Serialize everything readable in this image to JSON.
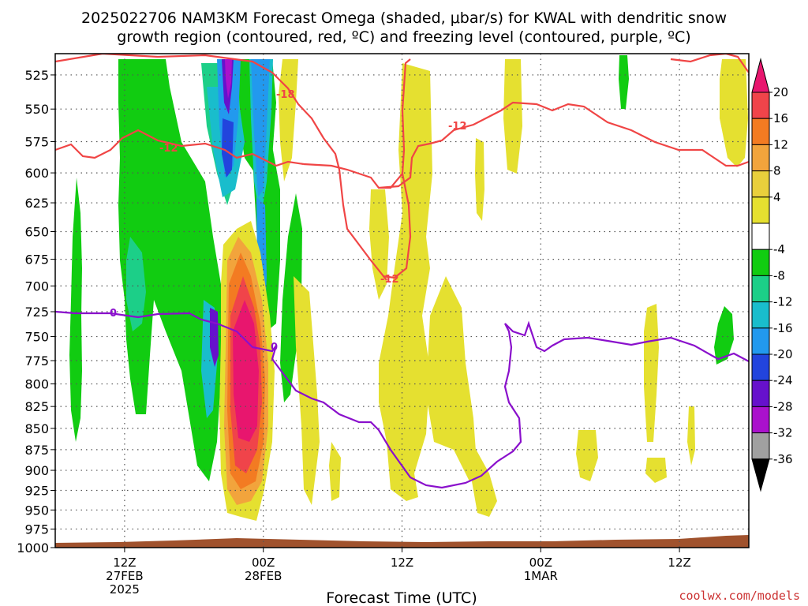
{
  "chart_data": {
    "type": "heatmap",
    "title_line1": "2025022706 NAM3KM Forecast Omega (shaded, μbar/s) for KWAL with dendritic snow",
    "title_line2": "growth region (contoured, red, ºC) and freezing level (contoured, purple, ºC)",
    "xlabel": "Forecast Time (UTC)",
    "ylabel": "",
    "y_levels": [
      525,
      550,
      575,
      600,
      625,
      650,
      675,
      700,
      725,
      750,
      775,
      800,
      825,
      850,
      875,
      900,
      925,
      950,
      975,
      1000
    ],
    "y_scale": "log-pressure, inverted",
    "ylim": [
      1000,
      510
    ],
    "x_ticks": [
      {
        "line1": "12Z",
        "line2": "27FEB",
        "line3": "2025",
        "hour": 6
      },
      {
        "line1": "00Z",
        "line2": "28FEB",
        "line3": "",
        "hour": 18
      },
      {
        "line1": "12Z",
        "line2": "",
        "line3": "",
        "hour": 30
      },
      {
        "line1": "00Z",
        "line2": "1MAR",
        "line3": "",
        "hour": 42
      },
      {
        "line1": "12Z",
        "line2": "",
        "line3": "",
        "hour": 54
      }
    ],
    "xlim_hours": [
      0,
      60
    ],
    "grid": true,
    "colorbar": {
      "labels": [
        "20",
        "16",
        "12",
        "8",
        "4",
        "-4",
        "-8",
        "-12",
        "-16",
        "-20",
        "-24",
        "-28",
        "-32",
        "-36"
      ],
      "colors": [
        "#e8166e",
        "#f0444a",
        "#f37b22",
        "#f2a43c",
        "#e9cf3c",
        "#e5e030",
        "#ffffff",
        "#11cc11",
        "#1ccf88",
        "#19bdcc",
        "#2299ee",
        "#2244dd",
        "#6611cc",
        "#aa11cc",
        "#a0a0a0",
        "#000000"
      ]
    },
    "contour_labels": {
      "red": [
        "-18",
        "-12",
        "-12",
        "-12"
      ],
      "purple": [
        "0",
        "0"
      ]
    },
    "colors": {
      "red_contour": "#f04545",
      "purple_contour": "#8a10cc",
      "terrain": "#a0522d"
    }
  },
  "credit": "coolwx.com/models"
}
